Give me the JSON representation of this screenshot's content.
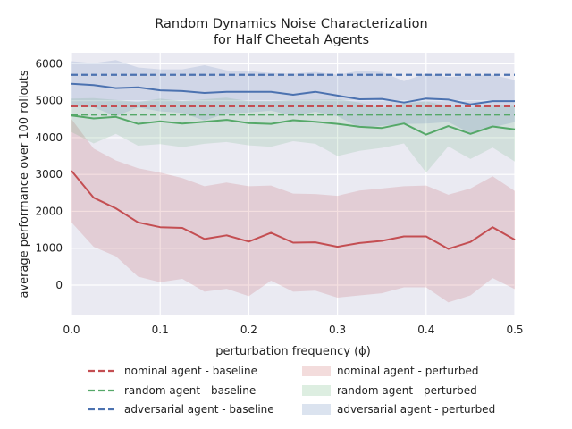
{
  "chart_data": {
    "type": "line",
    "title": [
      "Random Dynamics Noise Characterization",
      "for Half Cheetah Agents"
    ],
    "xlabel": "perturbation frequency (ϕ)",
    "ylabel": "average performance over 100 rollouts",
    "xlim": [
      0.0,
      0.5
    ],
    "ylim": [
      -800,
      6300
    ],
    "xticks": [
      0.0,
      0.1,
      0.2,
      0.3,
      0.4,
      0.5
    ],
    "xtick_labels": [
      "0.0",
      "0.1",
      "0.2",
      "0.3",
      "0.4",
      "0.5"
    ],
    "yticks": [
      0,
      1000,
      2000,
      3000,
      4000,
      5000,
      6000
    ],
    "ytick_labels": [
      "0",
      "1000",
      "2000",
      "3000",
      "4000",
      "5000",
      "6000"
    ],
    "grid": true,
    "legend_position": "below plot, two columns",
    "x": [
      0.0,
      0.025,
      0.05,
      0.075,
      0.1,
      0.125,
      0.15,
      0.175,
      0.2,
      0.225,
      0.25,
      0.275,
      0.3,
      0.325,
      0.35,
      0.375,
      0.4,
      0.425,
      0.45,
      0.475,
      0.5
    ],
    "baselines": [
      {
        "name": "nominal agent - baseline",
        "value": 4850,
        "color": "#c44e52"
      },
      {
        "name": "random agent - baseline",
        "value": 4620,
        "color": "#55a868"
      },
      {
        "name": "adversarial agent - baseline",
        "value": 5700,
        "color": "#4c72b0"
      }
    ],
    "series": [
      {
        "name": "nominal agent - perturbed",
        "color": "#c44e52",
        "mean": [
          3100,
          2370,
          2080,
          1700,
          1570,
          1550,
          1250,
          1350,
          1180,
          1420,
          1150,
          1160,
          1040,
          1140,
          1200,
          1320,
          1320,
          980,
          1170,
          1570,
          1230
        ],
        "upper": [
          4500,
          3700,
          3380,
          3170,
          3050,
          2900,
          2680,
          2780,
          2680,
          2700,
          2480,
          2470,
          2420,
          2560,
          2620,
          2680,
          2700,
          2450,
          2620,
          2950,
          2550
        ],
        "lower": [
          1700,
          1040,
          780,
          230,
          80,
          170,
          -180,
          -100,
          -300,
          120,
          -180,
          -150,
          -340,
          -280,
          -220,
          -60,
          -60,
          -470,
          -280,
          190,
          -110
        ]
      },
      {
        "name": "random agent - perturbed",
        "color": "#55a868",
        "mean": [
          4600,
          4520,
          4560,
          4370,
          4440,
          4380,
          4430,
          4480,
          4390,
          4370,
          4470,
          4430,
          4370,
          4290,
          4260,
          4380,
          4080,
          4310,
          4100,
          4300,
          4220
        ],
        "upper": [
          5060,
          5070,
          5020,
          4960,
          5060,
          4990,
          5040,
          5080,
          4990,
          4990,
          5020,
          5030,
          5040,
          4950,
          4800,
          4920,
          4980,
          4860,
          4790,
          4880,
          4850
        ],
        "lower": [
          4150,
          3840,
          4100,
          3780,
          3820,
          3740,
          3830,
          3880,
          3790,
          3750,
          3900,
          3830,
          3500,
          3640,
          3720,
          3840,
          3050,
          3760,
          3420,
          3730,
          3350
        ]
      },
      {
        "name": "adversarial agent - perturbed",
        "color": "#4c72b0",
        "mean": [
          5460,
          5420,
          5340,
          5360,
          5280,
          5260,
          5210,
          5240,
          5240,
          5240,
          5160,
          5240,
          5140,
          5040,
          5050,
          4950,
          5060,
          5030,
          4900,
          4990,
          4990
        ],
        "upper": [
          6070,
          6020,
          6100,
          5900,
          5850,
          5850,
          5960,
          5820,
          5800,
          5750,
          5730,
          5780,
          5700,
          5810,
          5780,
          5530,
          5740,
          5640,
          5680,
          5700,
          5560
        ],
        "lower": [
          4850,
          4820,
          4580,
          4820,
          4710,
          4670,
          4460,
          4660,
          4680,
          4730,
          4590,
          4700,
          4580,
          4270,
          4320,
          4370,
          4380,
          4420,
          4120,
          4280,
          4420
        ]
      }
    ]
  }
}
